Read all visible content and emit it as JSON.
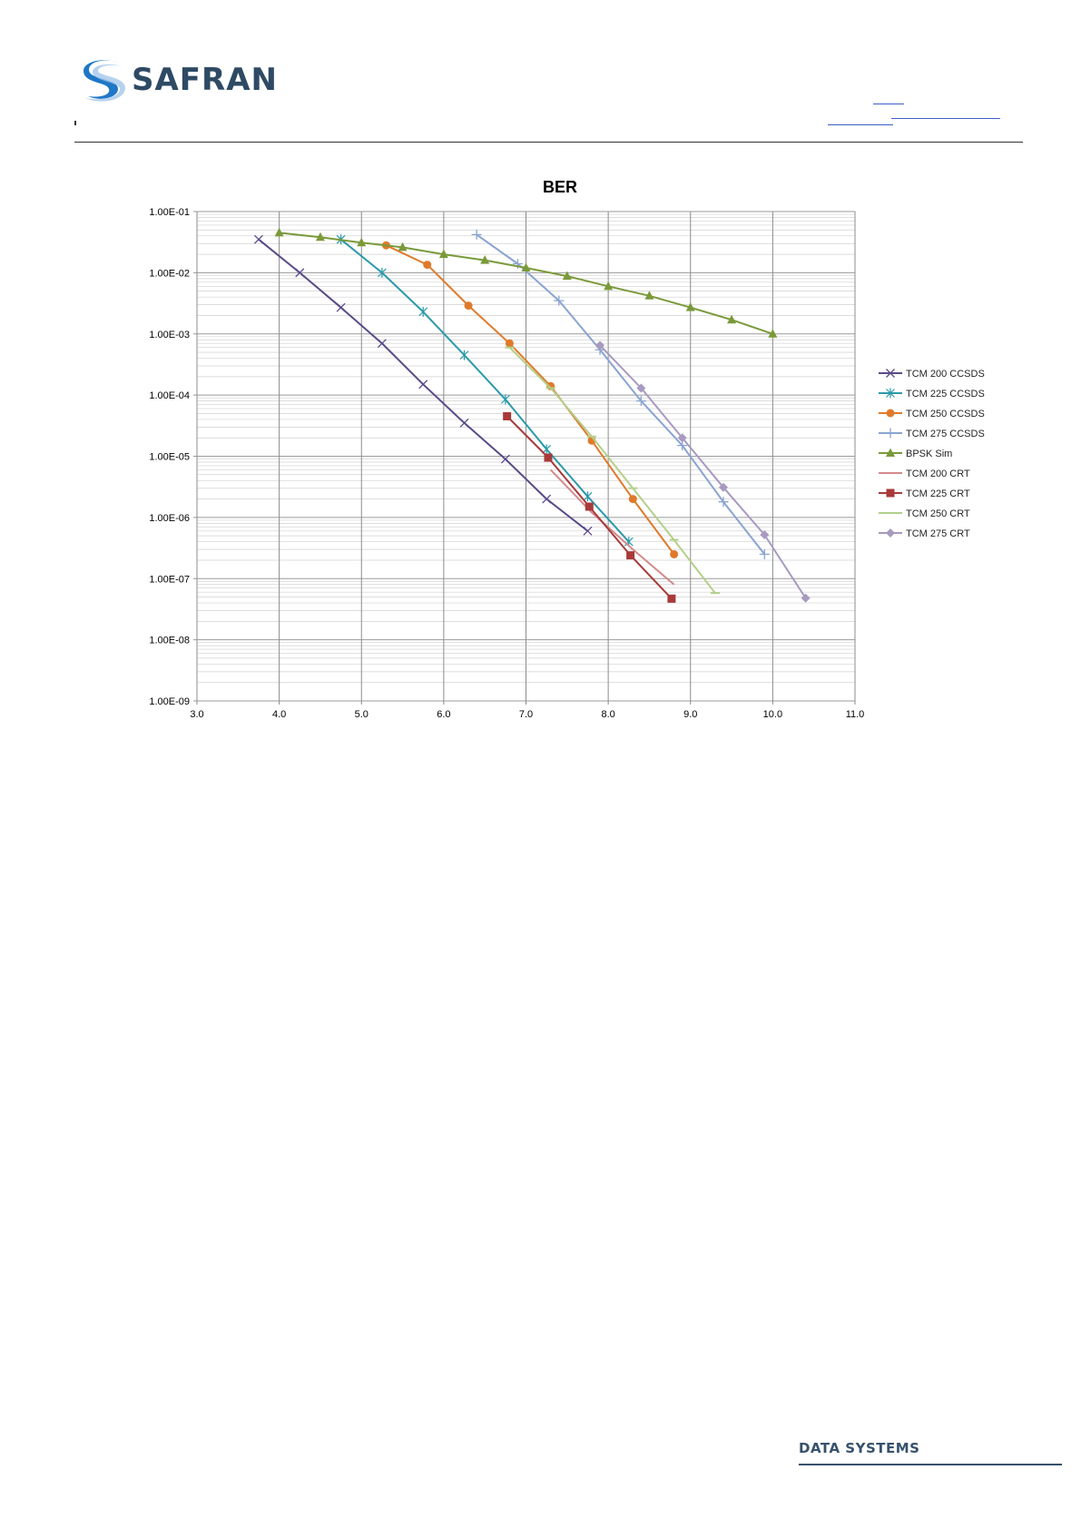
{
  "header": {
    "brand": "SAFRAN"
  },
  "footer": {
    "text": "DATA SYSTEMS"
  },
  "chart_data": {
    "type": "line",
    "title": "BER",
    "xlabel": "",
    "ylabel": "",
    "xlim": [
      3.0,
      11.0
    ],
    "ylim": [
      1e-09,
      0.1
    ],
    "y_scale": "log",
    "x_ticks": [
      "3.0",
      "4.0",
      "5.0",
      "6.0",
      "7.0",
      "8.0",
      "9.0",
      "10.0",
      "11.0"
    ],
    "y_ticks": [
      "1.00E-09",
      "1.00E-08",
      "1.00E-07",
      "1.00E-06",
      "1.00E-05",
      "1.00E-04",
      "1.00E-03",
      "1.00E-02",
      "1.00E-01"
    ],
    "grid": true,
    "legend_position": "right",
    "series": [
      {
        "name": "TCM 200 CCSDS",
        "color": "#5a4a87",
        "marker": "x",
        "x": [
          3.75,
          4.25,
          4.75,
          5.25,
          5.75,
          6.25,
          6.75,
          7.25,
          7.75
        ],
        "y": [
          0.035,
          0.01,
          0.0027,
          0.0007,
          0.00015,
          3.5e-05,
          9e-06,
          2e-06,
          6e-07
        ]
      },
      {
        "name": "TCM 225 CCSDS",
        "color": "#2a9aaa",
        "marker": "asterisk",
        "x": [
          4.75,
          5.25,
          5.75,
          6.25,
          6.75,
          7.25,
          7.75,
          8.25
        ],
        "y": [
          0.035,
          0.01,
          0.0023,
          0.00045,
          8.5e-05,
          1.3e-05,
          2.2e-06,
          4e-07
        ]
      },
      {
        "name": "TCM 250 CCSDS",
        "color": "#e07a2a",
        "marker": "circle",
        "x": [
          5.3,
          5.8,
          6.3,
          6.8,
          7.3,
          7.8,
          8.3,
          8.8
        ],
        "y": [
          0.028,
          0.0135,
          0.0029,
          0.0007,
          0.00014,
          1.8e-05,
          2e-06,
          2.5e-07
        ]
      },
      {
        "name": "TCM 275 CCSDS",
        "color": "#8aa4d0",
        "marker": "plus",
        "x": [
          6.4,
          6.9,
          7.4,
          7.9,
          8.4,
          8.9,
          9.4,
          9.9
        ],
        "y": [
          0.042,
          0.014,
          0.0035,
          0.00055,
          8e-05,
          1.5e-05,
          1.8e-06,
          2.5e-07
        ]
      },
      {
        "name": "BPSK Sim",
        "color": "#7a9a3a",
        "marker": "triangle",
        "x": [
          4.0,
          4.5,
          5.0,
          5.5,
          6.0,
          6.5,
          7.0,
          7.5,
          8.0,
          8.5,
          9.0,
          9.5,
          10.0
        ],
        "y": [
          0.045,
          0.038,
          0.031,
          0.026,
          0.02,
          0.016,
          0.012,
          0.0088,
          0.006,
          0.0042,
          0.0027,
          0.0017,
          0.001
        ]
      },
      {
        "name": "TCM 200 CRT",
        "color": "#d48a8a",
        "marker": "none",
        "x": [
          7.3,
          7.8,
          8.3,
          8.8
        ],
        "y": [
          6e-06,
          1.2e-06,
          3e-07,
          8e-08
        ]
      },
      {
        "name": "TCM 225 CRT",
        "color": "#a83a3a",
        "marker": "square",
        "x": [
          6.77,
          7.27,
          7.77,
          8.27,
          8.77
        ],
        "y": [
          4.5e-05,
          9.5e-06,
          1.5e-06,
          2.4e-07,
          4.7e-08
        ]
      },
      {
        "name": "TCM 250 CRT",
        "color": "#b4cf8a",
        "marker": "dash",
        "x": [
          6.8,
          7.3,
          7.8,
          8.3,
          8.8,
          9.3
        ],
        "y": [
          0.0006,
          0.00013,
          2.1e-05,
          3e-06,
          4.3e-07,
          5.8e-08
        ]
      },
      {
        "name": "TCM 275 CRT",
        "color": "#a89ac0",
        "marker": "diamond",
        "x": [
          7.9,
          8.4,
          8.9,
          9.4,
          9.9,
          10.4
        ],
        "y": [
          0.00065,
          0.00013,
          2e-05,
          3.1e-06,
          5.2e-07,
          4.8e-08
        ]
      }
    ]
  }
}
